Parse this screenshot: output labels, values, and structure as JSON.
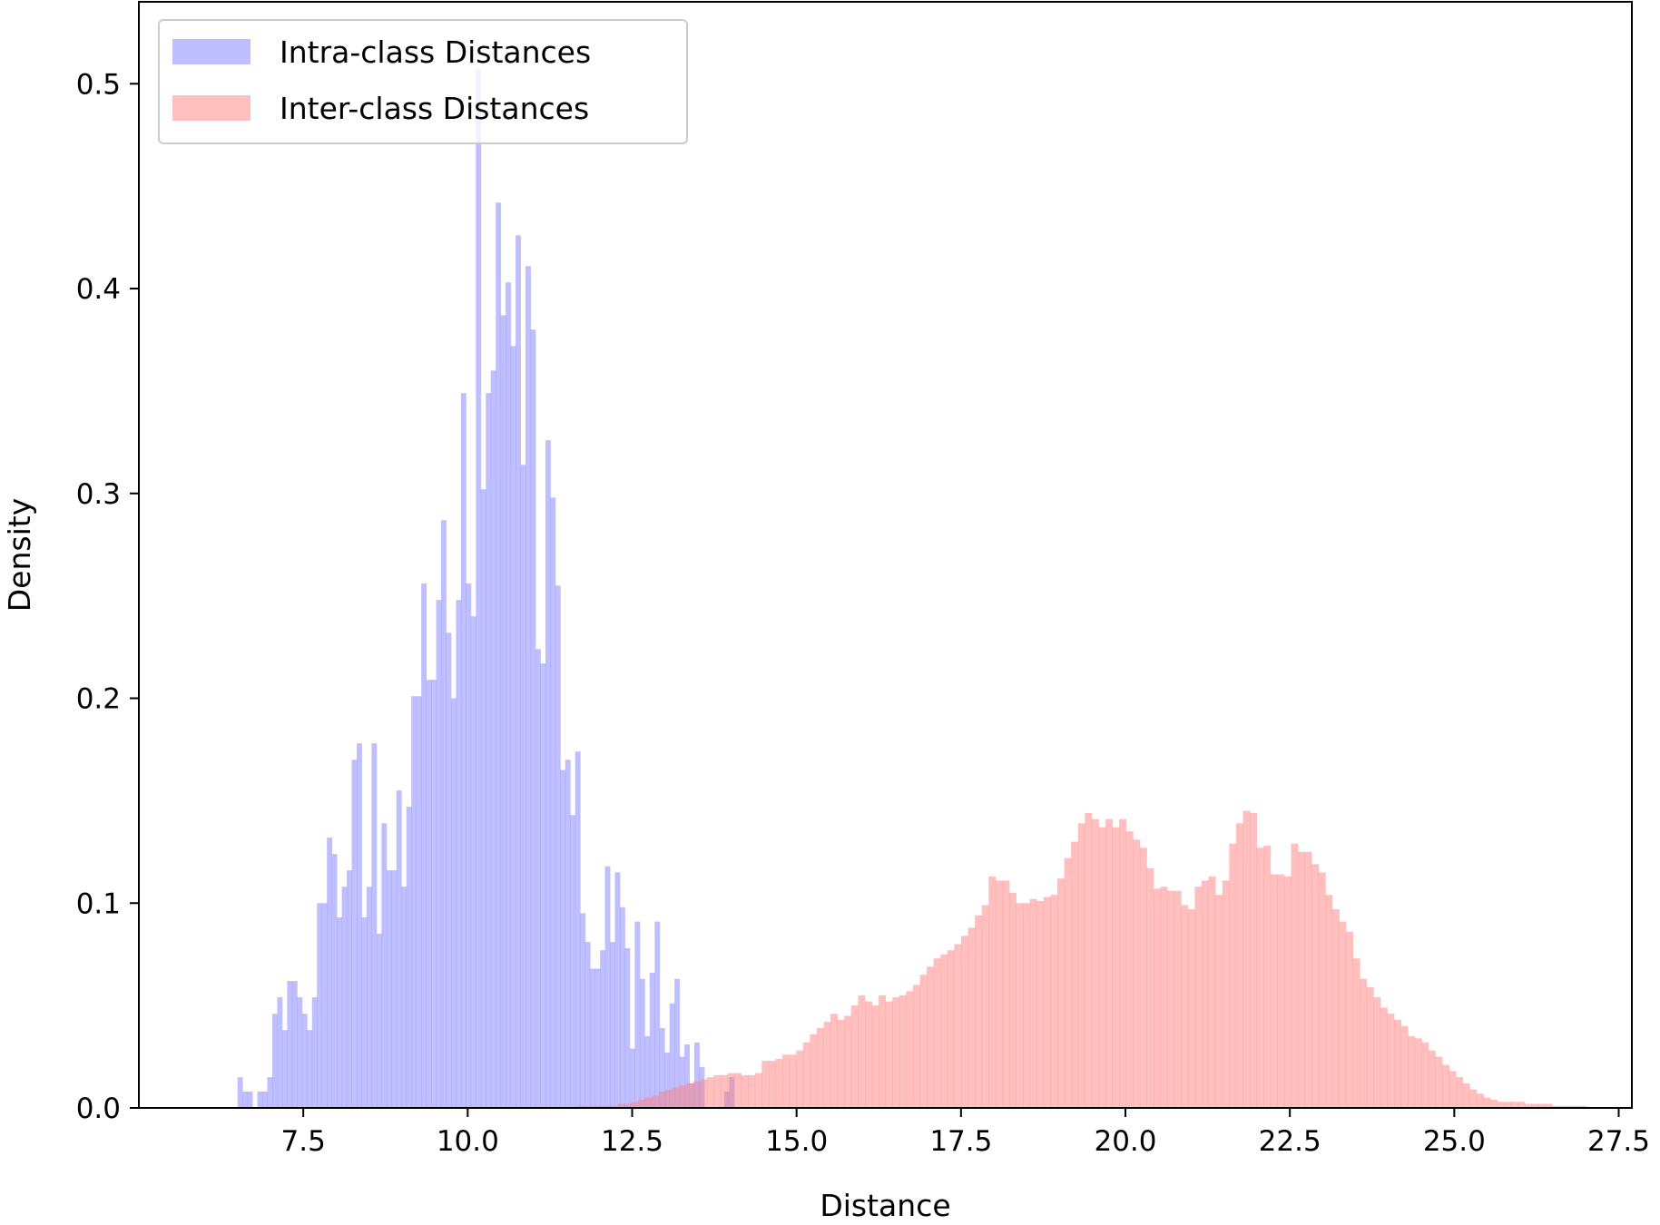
{
  "chart_data": {
    "type": "histogram",
    "title": "",
    "xlabel": "Distance",
    "ylabel": "Density",
    "xlim": [
      5.0,
      27.7
    ],
    "ylim": [
      0.0,
      0.54
    ],
    "grid": false,
    "legend_position": "top-left",
    "xticks": [
      7.5,
      10.0,
      12.5,
      15.0,
      17.5,
      20.0,
      22.5,
      25.0,
      27.5
    ],
    "xtick_labels": [
      "7.5",
      "10.0",
      "12.5",
      "15.0",
      "17.5",
      "20.0",
      "22.5",
      "25.0",
      "27.5"
    ],
    "yticks": [
      0.0,
      0.1,
      0.2,
      0.3,
      0.4,
      0.5
    ],
    "ytick_labels": [
      "0.0",
      "0.1",
      "0.2",
      "0.3",
      "0.4",
      "0.5"
    ],
    "series": [
      {
        "name": "Intra-class Distances",
        "color": "#8080ff",
        "bin_start": 6.5,
        "bin_width": 0.0755,
        "values": [
          0.015,
          0.008,
          0.008,
          0.0,
          0.008,
          0.008,
          0.015,
          0.046,
          0.054,
          0.038,
          0.062,
          0.062,
          0.054,
          0.046,
          0.038,
          0.054,
          0.1,
          0.1,
          0.132,
          0.124,
          0.093,
          0.108,
          0.116,
          0.17,
          0.178,
          0.093,
          0.108,
          0.178,
          0.085,
          0.139,
          0.116,
          0.116,
          0.155,
          0.108,
          0.147,
          0.201,
          0.201,
          0.256,
          0.209,
          0.209,
          0.248,
          0.287,
          0.232,
          0.2,
          0.248,
          0.349,
          0.256,
          0.24,
          0.507,
          0.302,
          0.349,
          0.36,
          0.442,
          0.387,
          0.403,
          0.372,
          0.426,
          0.314,
          0.411,
          0.38,
          0.224,
          0.217,
          0.326,
          0.298,
          0.255,
          0.165,
          0.17,
          0.143,
          0.174,
          0.095,
          0.081,
          0.068,
          0.068,
          0.077,
          0.118,
          0.081,
          0.115,
          0.098,
          0.078,
          0.029,
          0.091,
          0.063,
          0.035,
          0.066,
          0.091,
          0.039,
          0.027,
          0.051,
          0.063,
          0.025,
          0.031,
          0.012,
          0.032,
          0.02,
          0.0,
          0.0,
          0.0,
          0.0,
          0.008,
          0.015
        ]
      },
      {
        "name": "Inter-class Distances",
        "color": "#ff8080",
        "bin_start": 11.65,
        "bin_width": 0.1045,
        "values": [
          0.001,
          0.001,
          0.001,
          0.001,
          0.001,
          0.001,
          0.002,
          0.002,
          0.003,
          0.004,
          0.005,
          0.006,
          0.008,
          0.009,
          0.01,
          0.011,
          0.012,
          0.013,
          0.014,
          0.015,
          0.016,
          0.016,
          0.017,
          0.017,
          0.016,
          0.016,
          0.017,
          0.023,
          0.023,
          0.024,
          0.026,
          0.026,
          0.028,
          0.032,
          0.036,
          0.039,
          0.042,
          0.046,
          0.043,
          0.045,
          0.05,
          0.055,
          0.052,
          0.05,
          0.055,
          0.052,
          0.054,
          0.055,
          0.057,
          0.06,
          0.065,
          0.069,
          0.073,
          0.075,
          0.077,
          0.08,
          0.084,
          0.088,
          0.094,
          0.099,
          0.113,
          0.111,
          0.111,
          0.105,
          0.1,
          0.1,
          0.102,
          0.101,
          0.103,
          0.104,
          0.112,
          0.122,
          0.13,
          0.139,
          0.144,
          0.141,
          0.137,
          0.141,
          0.137,
          0.141,
          0.135,
          0.131,
          0.127,
          0.117,
          0.107,
          0.108,
          0.106,
          0.106,
          0.099,
          0.097,
          0.108,
          0.111,
          0.113,
          0.104,
          0.111,
          0.129,
          0.139,
          0.145,
          0.144,
          0.127,
          0.128,
          0.114,
          0.114,
          0.113,
          0.129,
          0.125,
          0.125,
          0.119,
          0.115,
          0.104,
          0.097,
          0.091,
          0.086,
          0.073,
          0.063,
          0.059,
          0.054,
          0.049,
          0.046,
          0.043,
          0.04,
          0.035,
          0.034,
          0.032,
          0.028,
          0.025,
          0.021,
          0.018,
          0.015,
          0.012,
          0.009,
          0.007,
          0.005,
          0.004,
          0.003,
          0.003,
          0.003,
          0.003,
          0.002,
          0.002,
          0.002,
          0.002,
          0.001,
          0.001,
          0.001,
          0.001,
          0.001
        ]
      }
    ]
  }
}
